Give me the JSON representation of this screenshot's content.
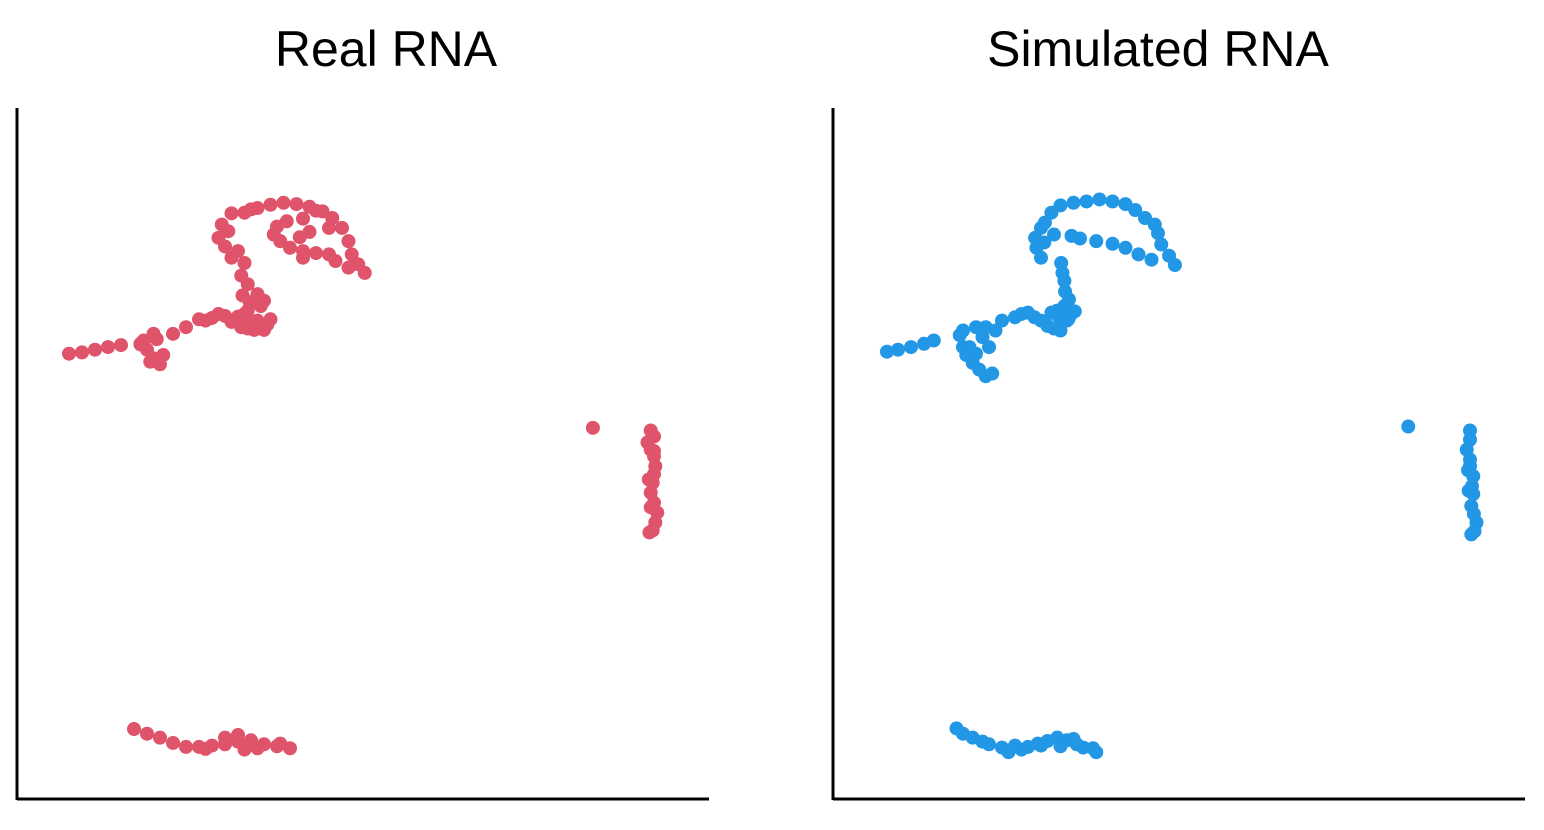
{
  "chart_data": [
    {
      "type": "scatter",
      "title": "Real RNA",
      "xlabel": "",
      "ylabel": "",
      "axis_ticks": false,
      "grid": false,
      "legend": "none",
      "color": "#DF536B",
      "xlim": [
        0,
        100
      ],
      "ylim": [
        0,
        100
      ],
      "points": [
        [
          4,
          65
        ],
        [
          6,
          65.2
        ],
        [
          8,
          65.6
        ],
        [
          10,
          66
        ],
        [
          12,
          66.3
        ],
        [
          15,
          66.4
        ],
        [
          16,
          65.6
        ],
        [
          17,
          64.3
        ],
        [
          18,
          63.4
        ],
        [
          16.5,
          63.8
        ],
        [
          15.5,
          67
        ],
        [
          17,
          68
        ],
        [
          17.5,
          67.2
        ],
        [
          15,
          66.5
        ],
        [
          18.5,
          64.8
        ],
        [
          22,
          69
        ],
        [
          20,
          68
        ],
        [
          25,
          70
        ],
        [
          26,
          70.4
        ],
        [
          24,
          70.2
        ],
        [
          27,
          71
        ],
        [
          28,
          70.7
        ],
        [
          29,
          69.8
        ],
        [
          30,
          70.6
        ],
        [
          31,
          71
        ],
        [
          30.5,
          69
        ],
        [
          31.5,
          68.8
        ],
        [
          32,
          69.6
        ],
        [
          33,
          70
        ],
        [
          33.5,
          69.3
        ],
        [
          32.5,
          68.6
        ],
        [
          34,
          68.6
        ],
        [
          34.5,
          69.4
        ],
        [
          35,
          70.2
        ],
        [
          34,
          73
        ],
        [
          33,
          74
        ],
        [
          31.5,
          75.5
        ],
        [
          30.5,
          76.8
        ],
        [
          31,
          78.7
        ],
        [
          30,
          80.5
        ],
        [
          28,
          81.2
        ],
        [
          27,
          82.5
        ],
        [
          27.5,
          84.5
        ],
        [
          29,
          86.2
        ],
        [
          31,
          86.3
        ],
        [
          33,
          87
        ],
        [
          35,
          87.5
        ],
        [
          37,
          87.8
        ],
        [
          39,
          87.6
        ],
        [
          41,
          87.2
        ],
        [
          43,
          86.5
        ],
        [
          44.5,
          85.5
        ],
        [
          46,
          84
        ],
        [
          47,
          82
        ],
        [
          47.5,
          80
        ],
        [
          48.5,
          78.5
        ],
        [
          49.5,
          77.2
        ],
        [
          47,
          78
        ],
        [
          45,
          79
        ],
        [
          44,
          80
        ],
        [
          42,
          80.2
        ],
        [
          40,
          80.5
        ],
        [
          38,
          81
        ],
        [
          36.5,
          82
        ],
        [
          35.5,
          83
        ],
        [
          36,
          84.2
        ],
        [
          37.5,
          85
        ],
        [
          40,
          85.4
        ],
        [
          41,
          83.4
        ],
        [
          39.5,
          82.6
        ],
        [
          42,
          86.6
        ],
        [
          44,
          84
        ],
        [
          40,
          79.5
        ],
        [
          32,
          86.8
        ],
        [
          28.5,
          83.5
        ],
        [
          29,
          79.5
        ],
        [
          31.5,
          71.5
        ],
        [
          31.8,
          72.8
        ],
        [
          33.5,
          72.2
        ],
        [
          30.7,
          73.8
        ],
        [
          84.6,
          53.8
        ],
        [
          93.5,
          53.4
        ],
        [
          94,
          52.5
        ],
        [
          93,
          51.6
        ],
        [
          93.5,
          50.5
        ],
        [
          94,
          49.5
        ],
        [
          94.2,
          48
        ],
        [
          94,
          46.8
        ],
        [
          93.8,
          45.5
        ],
        [
          93.5,
          44
        ],
        [
          94,
          42.5
        ],
        [
          94.5,
          41
        ],
        [
          94.2,
          39.5
        ],
        [
          93.8,
          38.3
        ],
        [
          93.3,
          38
        ],
        [
          93.5,
          41.8
        ],
        [
          93.2,
          46
        ],
        [
          94,
          50.3
        ],
        [
          14,
          8.3
        ],
        [
          16,
          7.6
        ],
        [
          18,
          7
        ],
        [
          20,
          6.2
        ],
        [
          22,
          5.6
        ],
        [
          24,
          5.6
        ],
        [
          26,
          5.8
        ],
        [
          28,
          6
        ],
        [
          30,
          6.4
        ],
        [
          32,
          6.3
        ],
        [
          34,
          6
        ],
        [
          36,
          5.7
        ],
        [
          38,
          5.4
        ],
        [
          28,
          7
        ],
        [
          30,
          7.4
        ],
        [
          32,
          6.6
        ],
        [
          31,
          5.2
        ],
        [
          33,
          5.4
        ],
        [
          25,
          5.3
        ],
        [
          36.5,
          6.1
        ]
      ]
    },
    {
      "type": "scatter",
      "title": "Simulated RNA",
      "xlabel": "",
      "ylabel": "",
      "axis_ticks": false,
      "grid": false,
      "legend": "none",
      "color": "#2297E6",
      "xlim": [
        0,
        100
      ],
      "ylim": [
        0,
        100
      ],
      "points": [
        [
          4.3,
          65.3
        ],
        [
          6,
          65.6
        ],
        [
          8,
          66
        ],
        [
          10,
          66.5
        ],
        [
          11.5,
          67
        ],
        [
          15.5,
          67.8
        ],
        [
          16,
          66
        ],
        [
          16.5,
          64.8
        ],
        [
          17.5,
          63.6
        ],
        [
          18.5,
          62.6
        ],
        [
          19.5,
          61.6
        ],
        [
          20.5,
          62
        ],
        [
          18,
          65
        ],
        [
          17,
          66
        ],
        [
          16,
          68.5
        ],
        [
          18,
          69
        ],
        [
          19.5,
          69
        ],
        [
          21,
          68.5
        ],
        [
          20,
          66
        ],
        [
          19,
          67.5
        ],
        [
          22,
          70
        ],
        [
          24,
          70.5
        ],
        [
          25,
          71
        ],
        [
          26,
          71.2
        ],
        [
          27,
          70.5
        ],
        [
          28,
          70
        ],
        [
          29,
          69.2
        ],
        [
          30,
          68.8
        ],
        [
          31,
          69.5
        ],
        [
          32,
          70
        ],
        [
          31,
          68.5
        ],
        [
          30.5,
          70.8
        ],
        [
          32.5,
          70.8
        ],
        [
          31.6,
          72.2
        ],
        [
          32.3,
          73.2
        ],
        [
          31.7,
          74.4
        ],
        [
          31.6,
          76
        ],
        [
          31.3,
          77.2
        ],
        [
          31.1,
          78.7
        ],
        [
          28,
          79.5
        ],
        [
          27.3,
          81
        ],
        [
          27.1,
          82.5
        ],
        [
          28,
          84
        ],
        [
          29.6,
          86.3
        ],
        [
          31,
          87.4
        ],
        [
          33,
          87.8
        ],
        [
          35,
          88
        ],
        [
          37,
          88.3
        ],
        [
          39,
          88
        ],
        [
          41,
          87.6
        ],
        [
          42.5,
          86.7
        ],
        [
          44,
          85.5
        ],
        [
          45.5,
          84.5
        ],
        [
          46,
          83.2
        ],
        [
          46.5,
          81.5
        ],
        [
          47.7,
          79.8
        ],
        [
          48.6,
          78.4
        ],
        [
          45,
          79.2
        ],
        [
          43,
          80
        ],
        [
          41,
          81
        ],
        [
          39,
          81.6
        ],
        [
          36.5,
          82
        ],
        [
          34,
          82.4
        ],
        [
          32.7,
          82.8
        ],
        [
          30,
          83
        ],
        [
          28.5,
          81.8
        ],
        [
          28.6,
          84.8
        ],
        [
          30.5,
          71.5
        ],
        [
          31.8,
          71.6
        ],
        [
          33.2,
          71.4
        ],
        [
          32.2,
          70.2
        ],
        [
          29.6,
          71.2
        ],
        [
          84.5,
          54
        ],
        [
          94,
          53.4
        ],
        [
          94,
          52
        ],
        [
          93.5,
          50.5
        ],
        [
          94,
          49
        ],
        [
          94,
          48
        ],
        [
          94.5,
          46.5
        ],
        [
          94.3,
          45
        ],
        [
          94.5,
          43.8
        ],
        [
          94.2,
          42
        ],
        [
          94.6,
          40.8
        ],
        [
          95,
          39.5
        ],
        [
          94.7,
          38.2
        ],
        [
          94.2,
          37.7
        ],
        [
          93.8,
          44.3
        ],
        [
          93.7,
          47.4
        ],
        [
          15,
          8.4
        ],
        [
          16,
          7.6
        ],
        [
          17.5,
          7
        ],
        [
          19,
          6.4
        ],
        [
          20,
          6
        ],
        [
          22,
          5.5
        ],
        [
          23,
          4.8
        ],
        [
          25,
          5.2
        ],
        [
          26,
          5.6
        ],
        [
          27.5,
          6.1
        ],
        [
          29,
          6.5
        ],
        [
          30.5,
          7
        ],
        [
          32,
          6.6
        ],
        [
          33.5,
          6
        ],
        [
          34.5,
          5.5
        ],
        [
          36,
          5.4
        ],
        [
          36.5,
          4.8
        ],
        [
          24,
          5.8
        ],
        [
          28,
          5.8
        ],
        [
          31,
          5.7
        ],
        [
          33,
          6.8
        ]
      ]
    }
  ]
}
